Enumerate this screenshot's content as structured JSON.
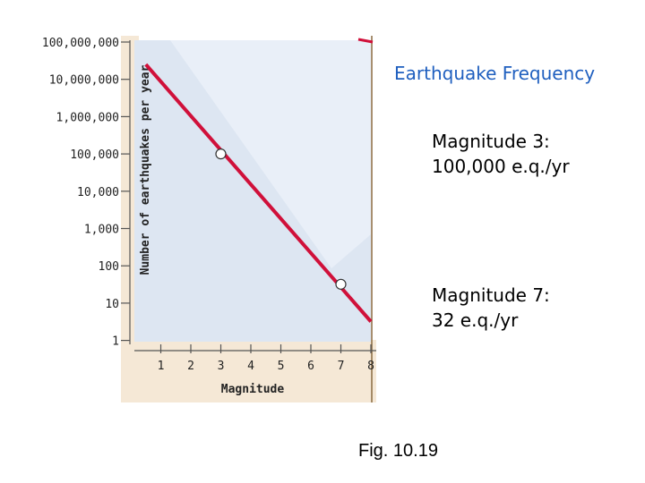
{
  "slide": {
    "title": "Earthquake Frequency",
    "callouts": [
      {
        "line1": "Magnitude 3:",
        "line2": "100,000 e.q./yr"
      },
      {
        "line1": "Magnitude 7:",
        "line2": "32 e.q./yr"
      }
    ],
    "caption": "Fig. 10.19"
  },
  "colors": {
    "line": "#d0103a",
    "panel": "#dde6f2",
    "background_strip": "#f5e8d6",
    "title": "#1f5fbf"
  },
  "chart_data": {
    "type": "line",
    "title": "",
    "xlabel": "Magnitude",
    "ylabel": "Number of earthquakes per year",
    "xlim": [
      0.5,
      8
    ],
    "ylim": [
      1,
      100000000
    ],
    "yscale": "log",
    "x_ticks": [
      "1",
      "2",
      "3",
      "4",
      "5",
      "6",
      "7",
      "8"
    ],
    "y_ticks": [
      "1",
      "10",
      "100",
      "1,000",
      "10,000",
      "100,000",
      "1,000,000",
      "10,000,000",
      "100,000,000"
    ],
    "series": [
      {
        "x": [
          0.5,
          8
        ],
        "y": [
          25000000,
          3.2
        ]
      }
    ],
    "points": [
      {
        "x": 3,
        "y": 100000
      },
      {
        "x": 7,
        "y": 32
      }
    ]
  }
}
